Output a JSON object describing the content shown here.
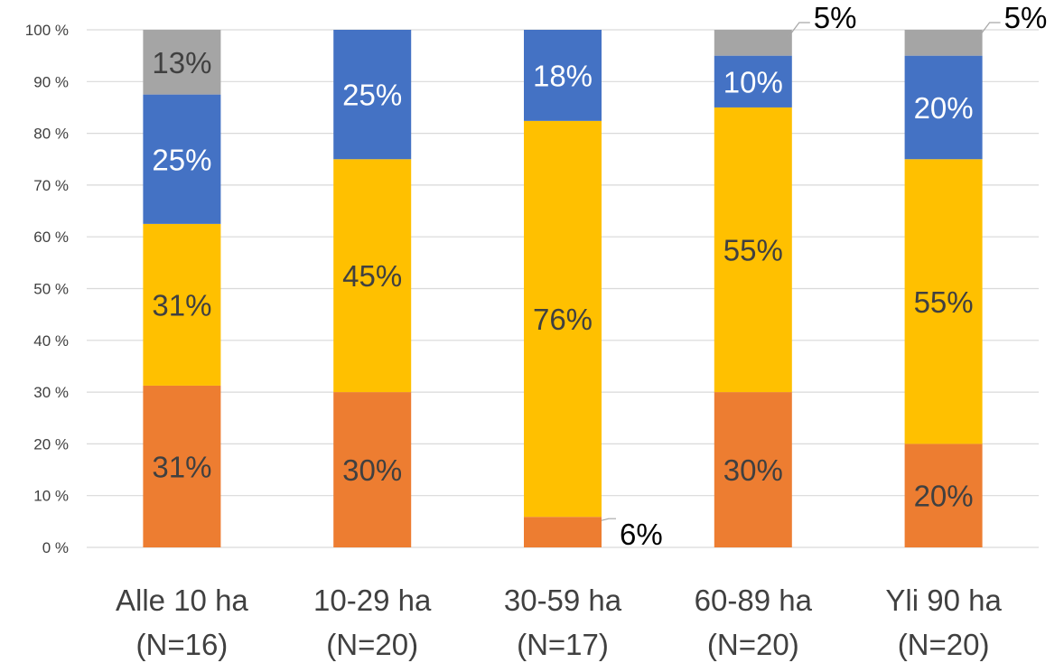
{
  "chart_data": {
    "type": "bar",
    "stacked": true,
    "percent": true,
    "categories": [
      [
        "Alle 10 ha",
        "(N=16)"
      ],
      [
        "10-29 ha",
        "(N=20)"
      ],
      [
        "30-59 ha",
        "(N=17)"
      ],
      [
        "60-89 ha",
        "(N=20)"
      ],
      [
        "Yli 90 ha",
        "(N=20)"
      ]
    ],
    "series": [
      {
        "color": "#ED7D31",
        "values": [
          31.25,
          30,
          5.9,
          30,
          20
        ],
        "labels": [
          "31%",
          "30%",
          "6%",
          "30%",
          "20%"
        ]
      },
      {
        "color": "#FFC000",
        "values": [
          31.25,
          45,
          76.5,
          55,
          55
        ],
        "labels": [
          "31%",
          "45%",
          "76%",
          "55%",
          "55%"
        ]
      },
      {
        "color": "#4472C4",
        "values": [
          25,
          25,
          17.6,
          10,
          20
        ],
        "labels": [
          "25%",
          "25%",
          "18%",
          "10%",
          "20%"
        ]
      },
      {
        "color": "#A5A5A5",
        "values": [
          12.5,
          0,
          0,
          5,
          5
        ],
        "labels": [
          "13%",
          "",
          "",
          "5%",
          "5%"
        ]
      }
    ],
    "ylim": [
      0,
      100
    ],
    "yticks": [
      "0 %",
      "10 %",
      "20 %",
      "30 %",
      "40 %",
      "50 %",
      "60 %",
      "70 %",
      "80 %",
      "90 %",
      "100 %"
    ],
    "grid": true,
    "legend": "none",
    "title": "",
    "xlabel": "",
    "ylabel": ""
  }
}
